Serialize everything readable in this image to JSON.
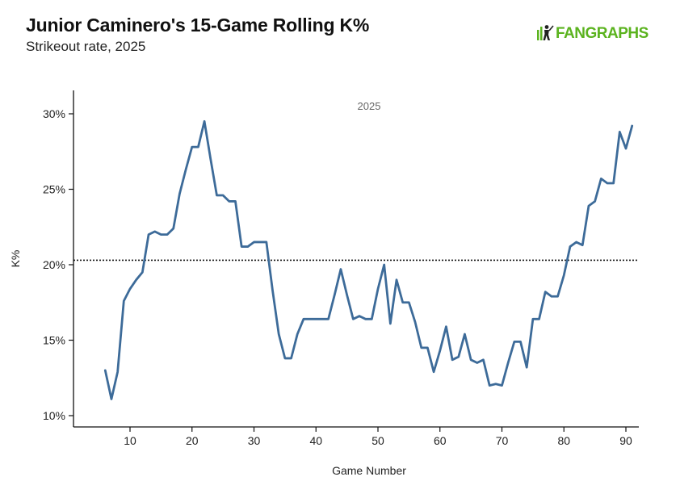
{
  "header": {
    "title": "Junior Caminero's 15-Game Rolling K%",
    "subtitle": "Strikeout rate, 2025"
  },
  "logo": {
    "text": "FANGRAPHS",
    "color": "#5bb31f",
    "icon": "fangraphs-player-icon"
  },
  "chart_data": {
    "type": "line",
    "title": "Junior Caminero's 15-Game Rolling K%",
    "subtitle": "Strikeout rate, 2025",
    "xlabel": "Game Number",
    "ylabel": "K%",
    "xlim": [
      1,
      92
    ],
    "ylim": [
      9.5,
      31.0
    ],
    "x_ticks": [
      10,
      20,
      30,
      40,
      50,
      60,
      70,
      80,
      90
    ],
    "y_ticks": [
      10,
      15,
      20,
      25,
      30
    ],
    "y_tick_labels": [
      "10%",
      "15%",
      "20%",
      "25%",
      "30%"
    ],
    "grid": false,
    "line_color": "#3d6b99",
    "annotation": "2025",
    "reference_line": {
      "value": 20.3,
      "style": "dotted",
      "color": "#111111"
    },
    "series": [
      {
        "name": "15-Game Rolling K%",
        "x": [
          6,
          7,
          8,
          9,
          10,
          11,
          12,
          13,
          14,
          15,
          16,
          17,
          18,
          19,
          20,
          21,
          22,
          23,
          24,
          25,
          26,
          27,
          28,
          29,
          30,
          31,
          32,
          33,
          34,
          35,
          36,
          37,
          38,
          39,
          40,
          41,
          42,
          43,
          44,
          45,
          46,
          47,
          48,
          49,
          50,
          51,
          52,
          53,
          54,
          55,
          56,
          57,
          58,
          59,
          60,
          61,
          62,
          63,
          64,
          65,
          66,
          67,
          68,
          69,
          70,
          71,
          72,
          73,
          74,
          75,
          76,
          77,
          78,
          79,
          80,
          81,
          82,
          83,
          84,
          85,
          86,
          87,
          88,
          89,
          90,
          91
        ],
        "values": [
          13.0,
          11.1,
          12.9,
          17.6,
          18.4,
          19.0,
          19.5,
          22.0,
          22.2,
          22.0,
          22.0,
          22.4,
          24.7,
          26.3,
          27.8,
          27.8,
          29.5,
          27.0,
          24.6,
          24.6,
          24.2,
          24.2,
          21.2,
          21.2,
          21.5,
          21.5,
          21.5,
          18.3,
          15.4,
          13.8,
          13.8,
          15.4,
          16.4,
          16.4,
          16.4,
          16.4,
          16.4,
          18.0,
          19.7,
          18.0,
          16.4,
          16.6,
          16.4,
          16.4,
          18.4,
          20.0,
          16.1,
          19.0,
          17.5,
          17.5,
          16.2,
          14.5,
          14.5,
          12.9,
          14.3,
          15.9,
          13.7,
          13.9,
          15.4,
          13.7,
          13.5,
          13.7,
          12.0,
          12.1,
          12.0,
          13.5,
          14.9,
          14.9,
          13.2,
          16.4,
          16.4,
          18.2,
          17.9,
          17.9,
          19.3,
          21.2,
          21.5,
          21.3,
          23.9,
          24.2,
          25.7,
          25.4,
          25.4,
          28.8,
          27.7,
          29.2
        ]
      }
    ]
  }
}
